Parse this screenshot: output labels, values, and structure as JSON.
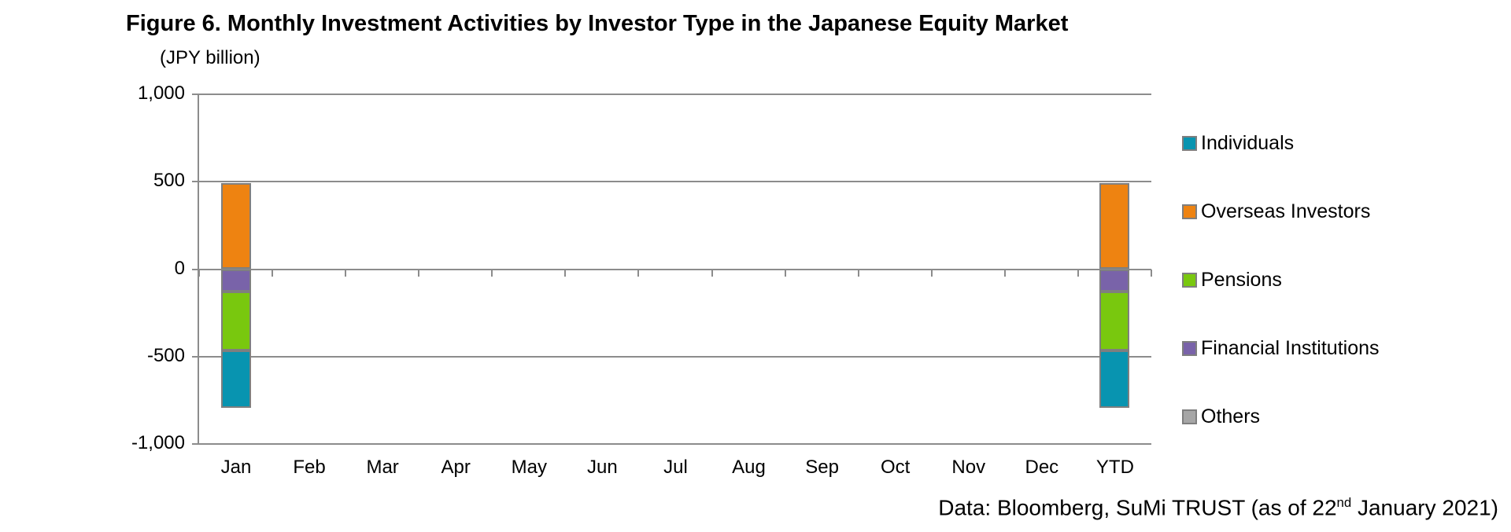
{
  "title": "Figure 6. Monthly Investment Activities by Investor Type in the Japanese Equity Market",
  "unit_label": "(JPY billion)",
  "footer": {
    "prefix": "Data: Bloomberg, SuMi TRUST (as of 22",
    "superscript": "nd",
    "suffix": " January 2021)"
  },
  "colors": {
    "individuals": "#0894b0",
    "overseas_investors": "#ee8311",
    "pensions": "#79c80e",
    "financial_institutions": "#7963a9",
    "others": "#a6a6a6",
    "gridline": "#8c8c8c",
    "bar_border": "#7f7f7f"
  },
  "legend": [
    {
      "label": "Individuals",
      "color": "#0894b0"
    },
    {
      "label": "Overseas Investors",
      "color": "#ee8311"
    },
    {
      "label": "Pensions",
      "color": "#79c80e"
    },
    {
      "label": "Financial Institutions",
      "color": "#7963a9"
    },
    {
      "label": "Others",
      "color": "#a6a6a6"
    }
  ],
  "chart_data": {
    "type": "bar",
    "stacked": true,
    "title": "Figure 6. Monthly Investment Activities by Investor Type in the Japanese Equity Market",
    "ylabel": "(JPY billion)",
    "ylim": [
      -1000,
      1000
    ],
    "ytick_interval": 500,
    "yticks": [
      "1,000",
      "500",
      "0",
      "-500",
      "-1,000"
    ],
    "grid": true,
    "legend_position": "right",
    "categories": [
      "Jan",
      "Feb",
      "Mar",
      "Apr",
      "May",
      "Jun",
      "Jul",
      "Aug",
      "Sep",
      "Oct",
      "Nov",
      "Dec",
      "YTD"
    ],
    "series": [
      {
        "name": "Individuals",
        "color": "#0894b0",
        "values": [
          -330,
          0,
          0,
          0,
          0,
          0,
          0,
          0,
          0,
          0,
          0,
          0,
          -330
        ]
      },
      {
        "name": "Overseas Investors",
        "color": "#ee8311",
        "values": [
          490,
          0,
          0,
          0,
          0,
          0,
          0,
          0,
          0,
          0,
          0,
          0,
          490
        ]
      },
      {
        "name": "Pensions",
        "color": "#79c80e",
        "values": [
          -335,
          0,
          0,
          0,
          0,
          0,
          0,
          0,
          0,
          0,
          0,
          0,
          -335
        ]
      },
      {
        "name": "Financial Institutions",
        "color": "#7963a9",
        "values": [
          -130,
          0,
          0,
          0,
          0,
          0,
          0,
          0,
          0,
          0,
          0,
          0,
          -130
        ]
      },
      {
        "name": "Others",
        "color": "#a6a6a6",
        "values": [
          0,
          0,
          0,
          0,
          0,
          0,
          0,
          0,
          0,
          0,
          0,
          0,
          0
        ]
      }
    ],
    "positive_stack_order": [
      "Overseas Investors",
      "Others"
    ],
    "negative_stack_order": [
      "Financial Institutions",
      "Pensions",
      "Individuals"
    ]
  }
}
